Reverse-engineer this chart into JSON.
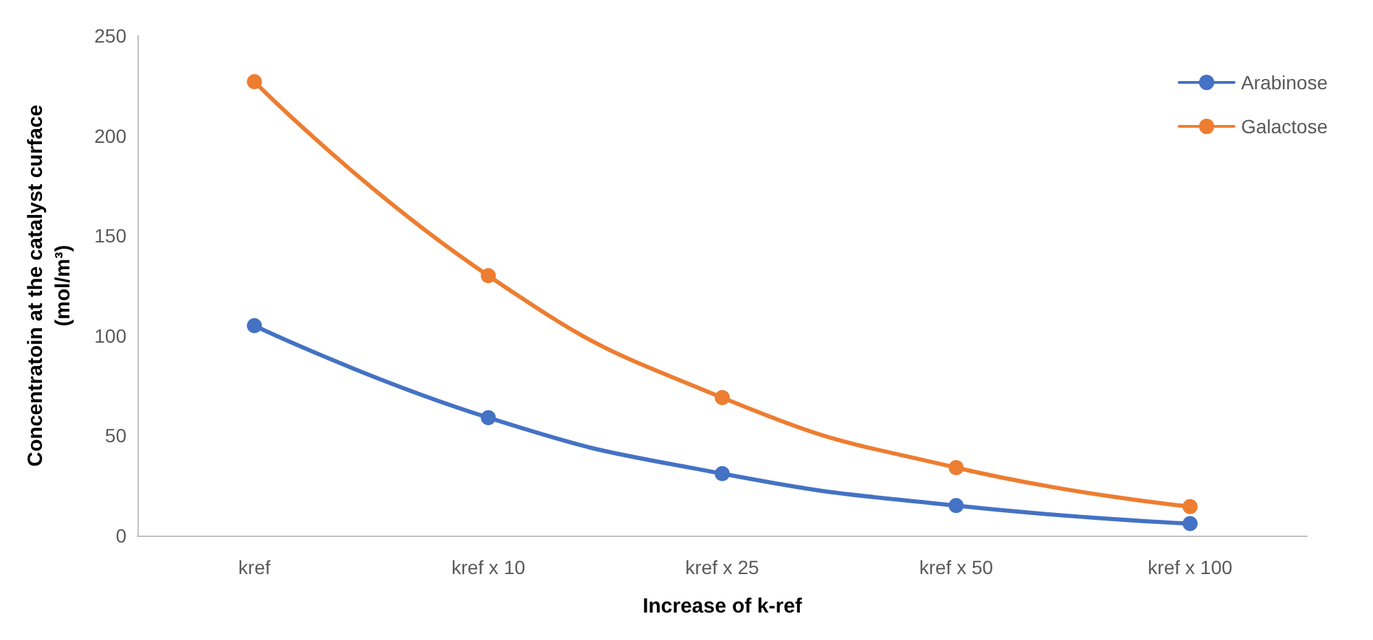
{
  "chart_data": {
    "type": "line",
    "xlabel": "Increase of k-ref",
    "ylabel": "Concentratoin at the catalyst curface\n(mol/m³)",
    "categories": [
      "kref",
      "kref x 10",
      "kref x 25",
      "kref x 50",
      "kref x 100"
    ],
    "series": [
      {
        "name": "Arabinose",
        "color": "#4472c4",
        "values": [
          105,
          59,
          31,
          15,
          6
        ]
      },
      {
        "name": "Galactose",
        "color": "#ed7d31",
        "values": [
          227,
          130,
          69,
          34,
          14.5
        ]
      }
    ],
    "ylim": [
      0,
      250
    ],
    "yticks": [
      0,
      50,
      100,
      150,
      200,
      250
    ],
    "grid": false,
    "legend": "top right",
    "marker": "circle",
    "line_style": "solid"
  }
}
